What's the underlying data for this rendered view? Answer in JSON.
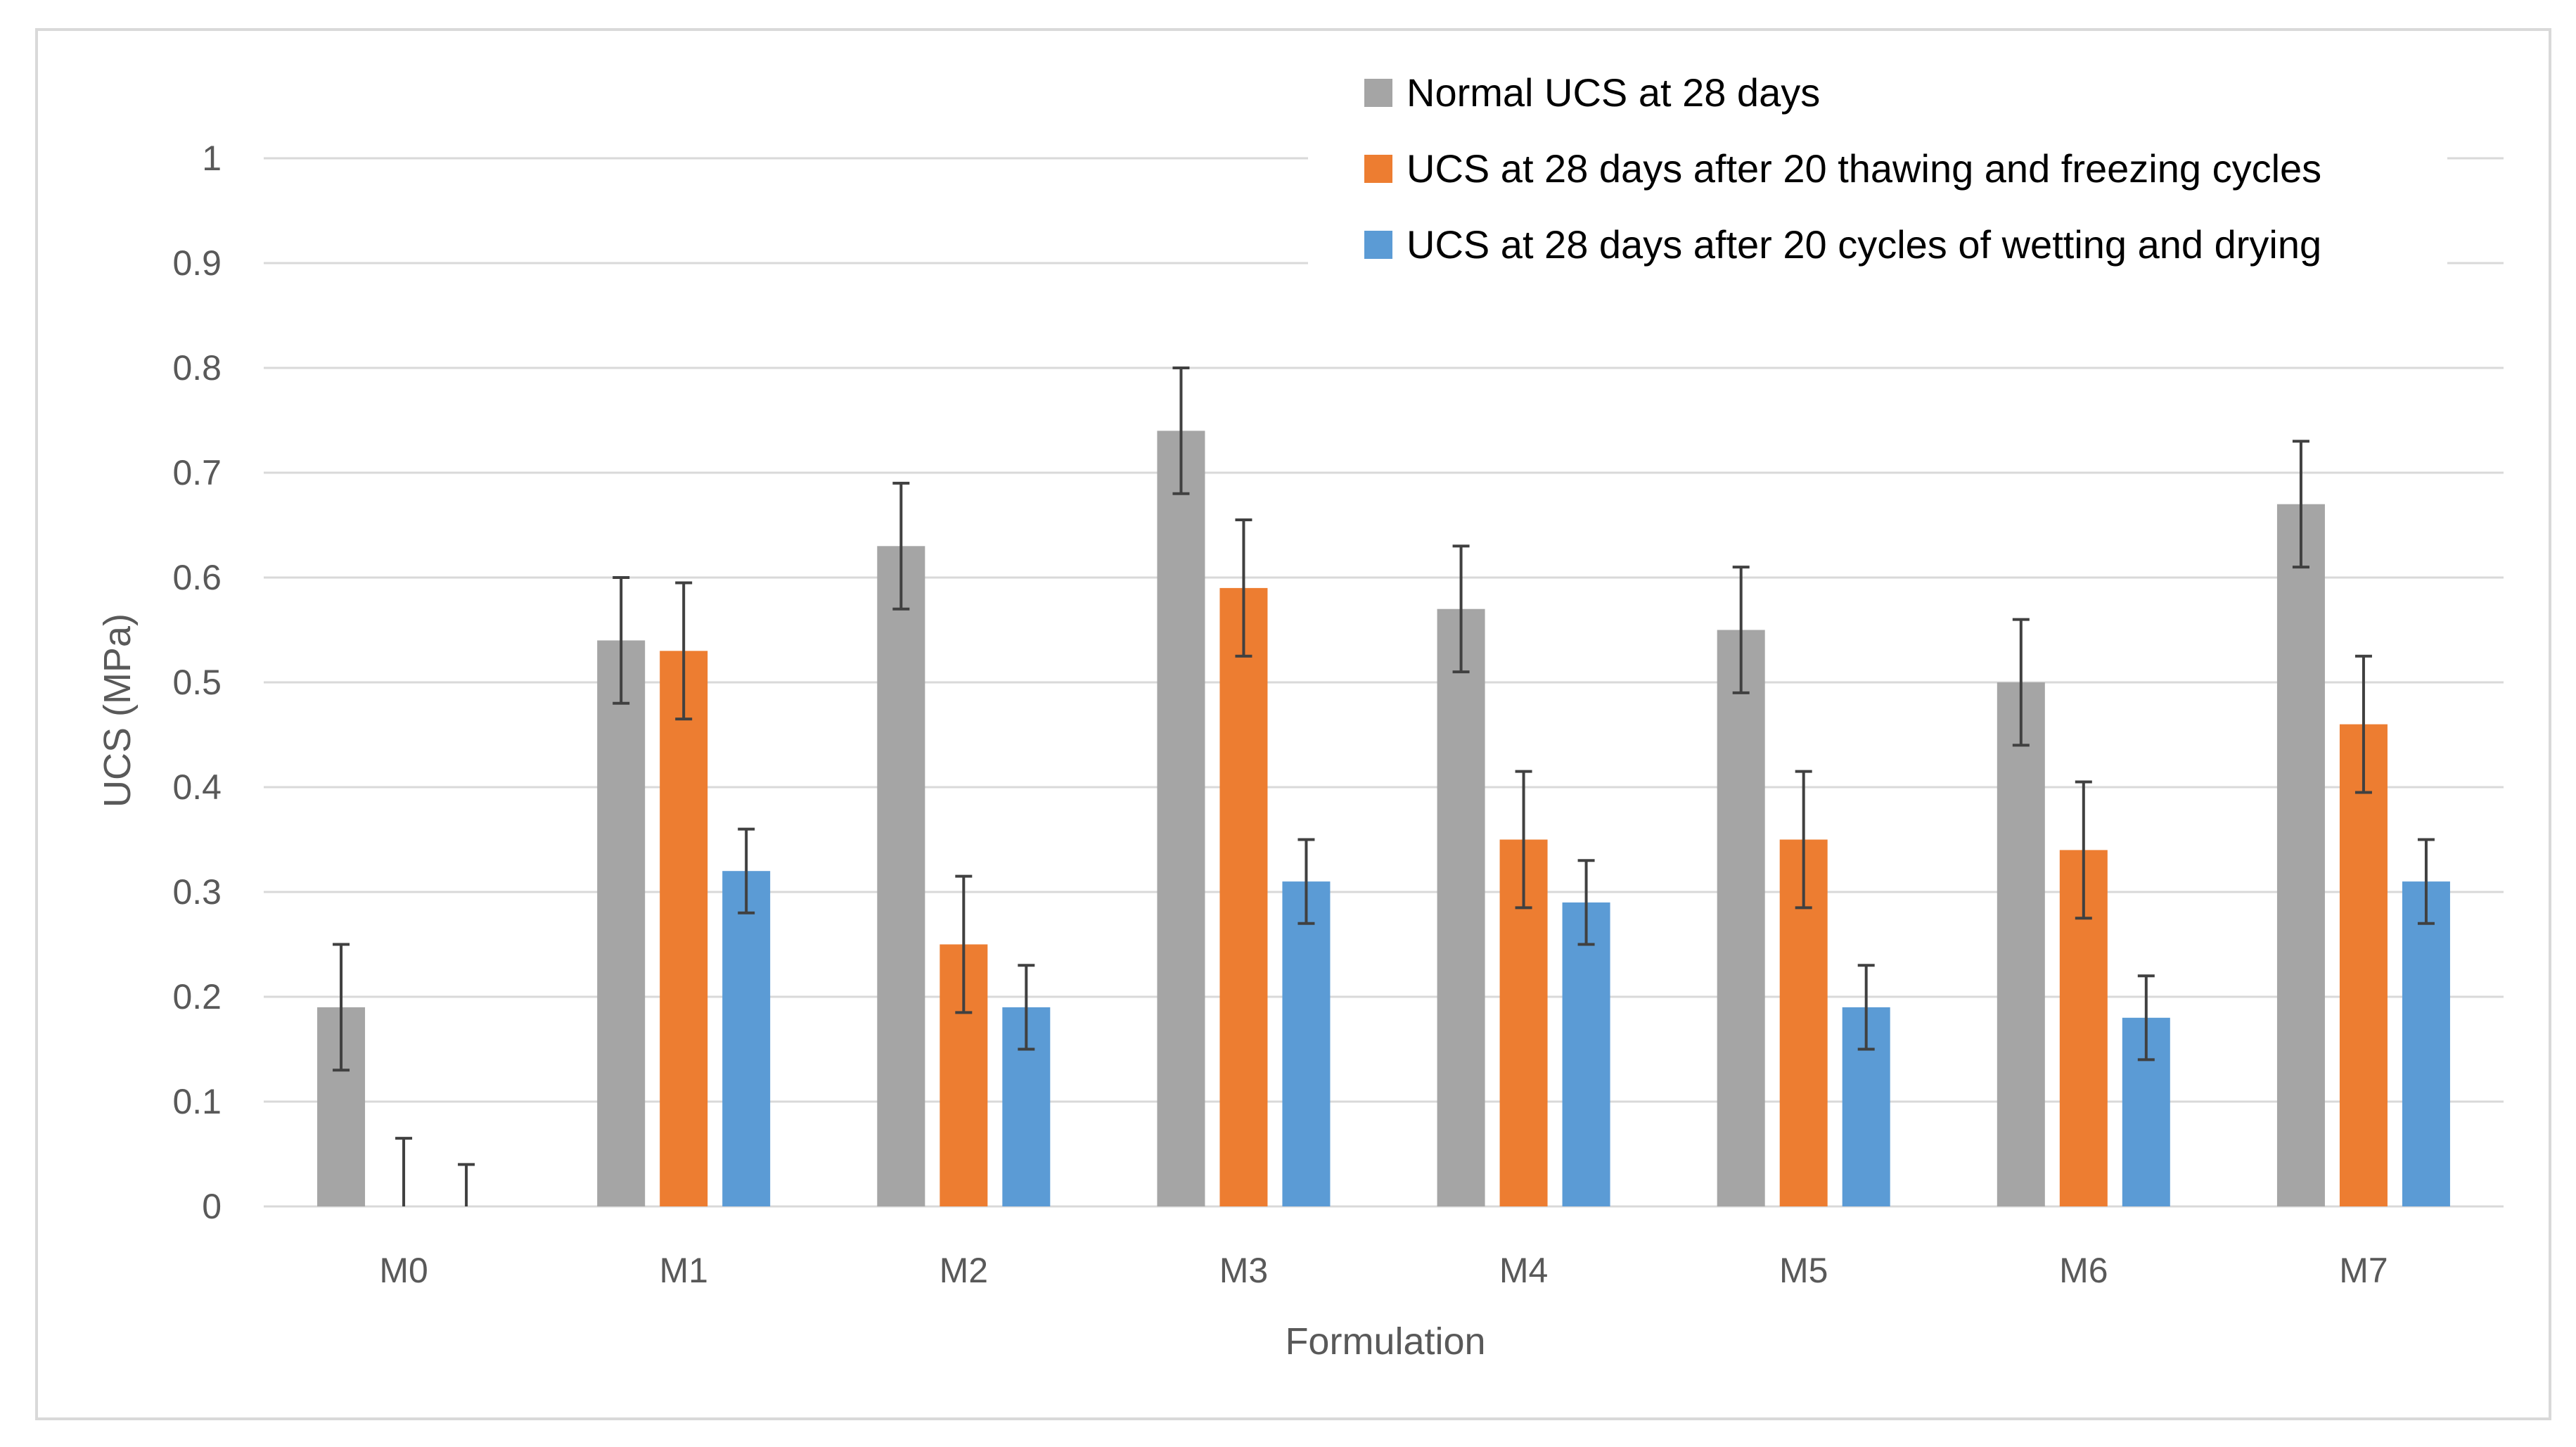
{
  "chart_data": {
    "type": "bar",
    "title": "",
    "xlabel": "Formulation",
    "ylabel": "UCS (MPa)",
    "ylim": [
      0,
      1
    ],
    "yticks": [
      "0",
      "0.1",
      "0.2",
      "0.3",
      "0.4",
      "0.5",
      "0.6",
      "0.7",
      "0.8",
      "0.9",
      "1"
    ],
    "grid": true,
    "legend_position": "top-right",
    "categories": [
      "M0",
      "M1",
      "M2",
      "M3",
      "M4",
      "M5",
      "M6",
      "M7"
    ],
    "series": [
      {
        "name": "Normal UCS at 28 days",
        "color": "#a5a5a5",
        "values": [
          0.19,
          0.54,
          0.63,
          0.74,
          0.57,
          0.55,
          0.5,
          0.67
        ],
        "error": [
          0.06,
          0.06,
          0.06,
          0.06,
          0.06,
          0.06,
          0.06,
          0.06
        ]
      },
      {
        "name": "UCS at 28 days after 20 thawing and freezing cycles",
        "color": "#ed7d31",
        "values": [
          0,
          0.53,
          0.25,
          0.59,
          0.35,
          0.35,
          0.34,
          0.46
        ],
        "error": [
          0.065,
          0.065,
          0.065,
          0.065,
          0.065,
          0.065,
          0.065,
          0.065
        ]
      },
      {
        "name": "UCS at 28 days after 20 cycles of wetting and drying",
        "color": "#5b9bd5",
        "values": [
          0,
          0.32,
          0.19,
          0.31,
          0.29,
          0.19,
          0.18,
          0.31
        ],
        "error": [
          0.04,
          0.04,
          0.04,
          0.04,
          0.04,
          0.04,
          0.04,
          0.04
        ]
      }
    ]
  }
}
